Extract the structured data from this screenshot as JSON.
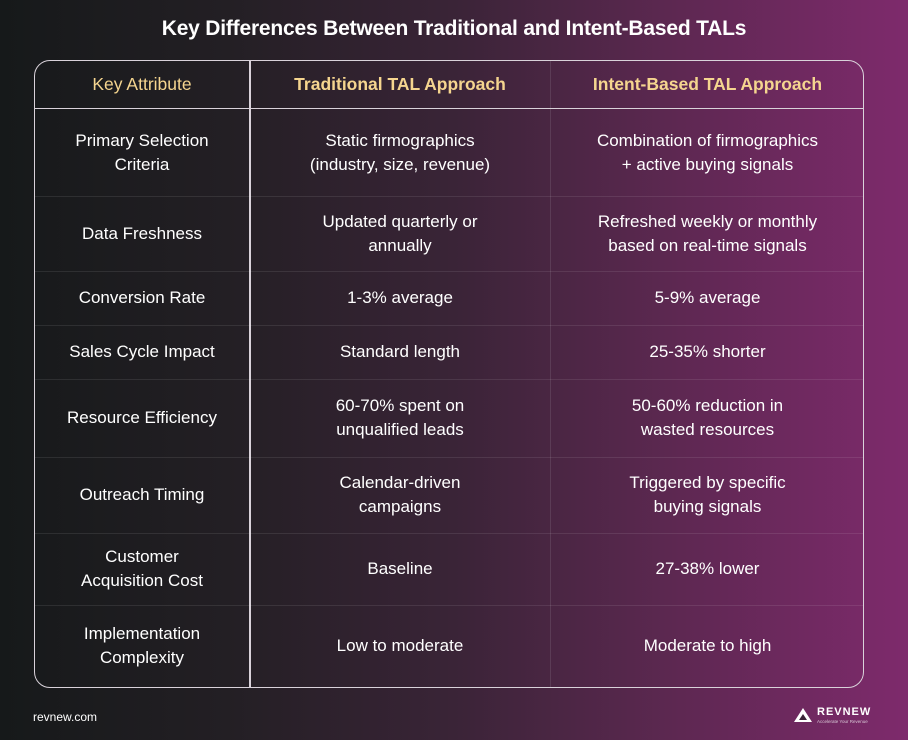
{
  "title": "Key Differences Between Traditional and Intent-Based TALs",
  "table": {
    "headers": [
      "Key Attribute",
      "Traditional TAL Approach",
      "Intent-Based TAL Approach"
    ],
    "rows": [
      {
        "attribute": "Primary Selection\nCriteria",
        "traditional": "Static firmographics\n(industry, size, revenue)",
        "intent": "Combination of firmographics\n+ active buying signals"
      },
      {
        "attribute": "Data Freshness",
        "traditional": "Updated quarterly or\nannually",
        "intent": "Refreshed weekly or monthly\nbased on real-time signals"
      },
      {
        "attribute": "Conversion Rate",
        "traditional": "1-3% average",
        "intent": "5-9% average"
      },
      {
        "attribute": "Sales Cycle Impact",
        "traditional": "Standard length",
        "intent": "25-35% shorter"
      },
      {
        "attribute": "Resource Efficiency",
        "traditional": "60-70% spent on\nunqualified leads",
        "intent": "50-60% reduction in\nwasted resources"
      },
      {
        "attribute": "Outreach Timing",
        "traditional": "Calendar-driven\ncampaigns",
        "intent": "Triggered by specific\nbuying signals"
      },
      {
        "attribute": "Customer\nAcquisition Cost",
        "traditional": "Baseline",
        "intent": "27-38% lower"
      },
      {
        "attribute": "Implementation\nComplexity",
        "traditional": "Low to moderate",
        "intent": "Moderate to high"
      }
    ]
  },
  "footer": {
    "website": "revnew.com",
    "brand": "REVNEW",
    "tagline": "Accelerate Your Revenue"
  },
  "colors": {
    "header_text": "#f5d58f",
    "border": "#d9d2da",
    "gradient_start": "#16191a",
    "gradient_end": "#7e2a6c"
  }
}
